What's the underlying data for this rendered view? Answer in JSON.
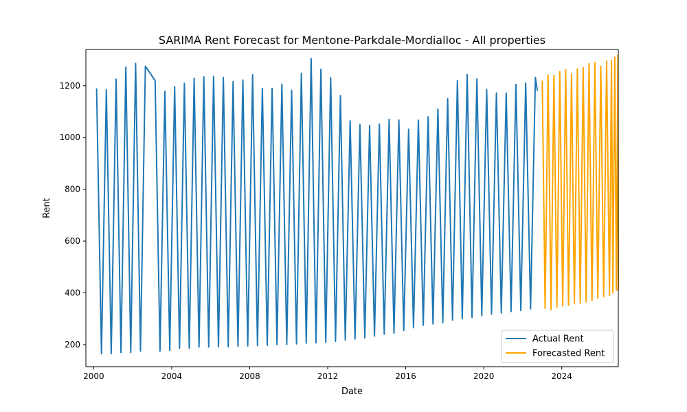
{
  "chart_data": {
    "type": "line",
    "title": "SARIMA Rent Forecast for Mentone-Parkdale-Mordialloc - All properties",
    "xlabel": "Date",
    "ylabel": "Rent",
    "xlim": [
      1999.6,
      2026.9
    ],
    "ylim": [
      115,
      1340
    ],
    "x_ticks": [
      2000,
      2004,
      2008,
      2012,
      2016,
      2020,
      2024
    ],
    "y_ticks": [
      200,
      400,
      600,
      800,
      1000,
      1200
    ],
    "grid": false,
    "legend_position": "lower-right",
    "series": [
      {
        "name": "Actual Rent",
        "color": "#1f77b4",
        "points": [
          [
            2000.15,
            1190
          ],
          [
            2000.4,
            165
          ],
          [
            2000.65,
            1185
          ],
          [
            2000.9,
            165
          ],
          [
            2001.15,
            1225
          ],
          [
            2001.4,
            170
          ],
          [
            2001.65,
            1272
          ],
          [
            2001.9,
            170
          ],
          [
            2002.15,
            1286
          ],
          [
            2002.4,
            175
          ],
          [
            2002.65,
            1275
          ],
          [
            2003.15,
            1220
          ],
          [
            2003.4,
            175
          ],
          [
            2003.65,
            1178
          ],
          [
            2003.9,
            178
          ],
          [
            2004.15,
            1196
          ],
          [
            2004.4,
            186
          ],
          [
            2004.65,
            1209
          ],
          [
            2004.9,
            186
          ],
          [
            2005.15,
            1229
          ],
          [
            2005.4,
            191
          ],
          [
            2005.65,
            1234
          ],
          [
            2005.9,
            191
          ],
          [
            2006.15,
            1236
          ],
          [
            2006.4,
            192
          ],
          [
            2006.65,
            1232
          ],
          [
            2006.9,
            192
          ],
          [
            2007.15,
            1216
          ],
          [
            2007.4,
            194
          ],
          [
            2007.65,
            1222
          ],
          [
            2007.9,
            195
          ],
          [
            2008.15,
            1242
          ],
          [
            2008.4,
            196
          ],
          [
            2008.65,
            1190
          ],
          [
            2008.9,
            198
          ],
          [
            2009.15,
            1190
          ],
          [
            2009.4,
            200
          ],
          [
            2009.65,
            1206
          ],
          [
            2009.9,
            201
          ],
          [
            2010.15,
            1182
          ],
          [
            2010.4,
            203
          ],
          [
            2010.65,
            1248
          ],
          [
            2010.9,
            206
          ],
          [
            2011.15,
            1305
          ],
          [
            2011.4,
            207
          ],
          [
            2011.65,
            1264
          ],
          [
            2011.9,
            209
          ],
          [
            2012.15,
            1231
          ],
          [
            2012.4,
            213
          ],
          [
            2012.65,
            1162
          ],
          [
            2012.9,
            218
          ],
          [
            2013.15,
            1064
          ],
          [
            2013.4,
            222
          ],
          [
            2013.65,
            1050
          ],
          [
            2013.9,
            226
          ],
          [
            2014.15,
            1046
          ],
          [
            2014.4,
            233
          ],
          [
            2014.65,
            1052
          ],
          [
            2014.9,
            240
          ],
          [
            2015.15,
            1070
          ],
          [
            2015.4,
            245
          ],
          [
            2015.65,
            1068
          ],
          [
            2015.9,
            255
          ],
          [
            2016.15,
            1032
          ],
          [
            2016.4,
            265
          ],
          [
            2016.65,
            1067
          ],
          [
            2016.9,
            275
          ],
          [
            2017.15,
            1080
          ],
          [
            2017.4,
            280
          ],
          [
            2017.65,
            1110
          ],
          [
            2017.9,
            285
          ],
          [
            2018.15,
            1150
          ],
          [
            2018.4,
            295
          ],
          [
            2018.65,
            1220
          ],
          [
            2018.9,
            300
          ],
          [
            2019.15,
            1243
          ],
          [
            2019.4,
            305
          ],
          [
            2019.65,
            1226
          ],
          [
            2019.9,
            312
          ],
          [
            2020.15,
            1185
          ],
          [
            2020.4,
            318
          ],
          [
            2020.65,
            1172
          ],
          [
            2020.9,
            322
          ],
          [
            2021.15,
            1172
          ],
          [
            2021.4,
            328
          ],
          [
            2021.65,
            1205
          ],
          [
            2021.9,
            332
          ],
          [
            2022.15,
            1210
          ],
          [
            2022.4,
            338
          ],
          [
            2022.65,
            1232
          ],
          [
            2022.75,
            1180
          ]
        ]
      },
      {
        "name": "Forecasted Rent",
        "color": "#ffa500",
        "points": [
          [
            2023.0,
            1220
          ],
          [
            2023.15,
            340
          ],
          [
            2023.3,
            1242
          ],
          [
            2023.45,
            335
          ],
          [
            2023.6,
            1240
          ],
          [
            2023.75,
            345
          ],
          [
            2023.9,
            1255
          ],
          [
            2024.05,
            350
          ],
          [
            2024.2,
            1262
          ],
          [
            2024.35,
            352
          ],
          [
            2024.5,
            1245
          ],
          [
            2024.65,
            358
          ],
          [
            2024.8,
            1265
          ],
          [
            2024.95,
            360
          ],
          [
            2025.1,
            1270
          ],
          [
            2025.25,
            365
          ],
          [
            2025.4,
            1285
          ],
          [
            2025.55,
            370
          ],
          [
            2025.7,
            1290
          ],
          [
            2025.85,
            380
          ],
          [
            2026.0,
            1275
          ],
          [
            2026.15,
            385
          ],
          [
            2026.3,
            1295
          ],
          [
            2026.45,
            390
          ],
          [
            2026.55,
            1298
          ],
          [
            2026.62,
            400
          ],
          [
            2026.72,
            1310
          ],
          [
            2026.8,
            410
          ],
          [
            2026.88,
            1318
          ],
          [
            2026.9,
            410
          ]
        ]
      }
    ]
  }
}
